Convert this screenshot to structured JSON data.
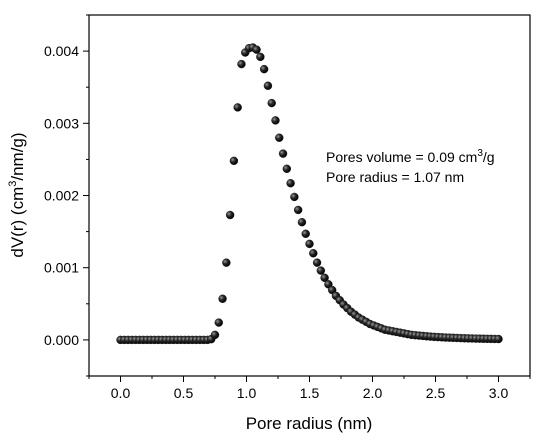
{
  "chart_data": {
    "type": "scatter",
    "xlabel": "Pore radius (nm)",
    "ylabel": {
      "prefix": "dV(r) (cm",
      "sup": "3",
      "suffix": "/nm/g)"
    },
    "xlim": [
      -0.25,
      3.25
    ],
    "ylim": [
      -0.0005,
      0.0045
    ],
    "xticks": [
      0.0,
      0.5,
      1.0,
      1.5,
      2.0,
      2.5,
      3.0
    ],
    "xtick_labels": [
      "0.0",
      "0.5",
      "1.0",
      "1.5",
      "2.0",
      "2.5",
      "3.0"
    ],
    "yticks": [
      0.0,
      0.001,
      0.002,
      0.003,
      0.004
    ],
    "ytick_labels": [
      "0.000",
      "0.001",
      "0.002",
      "0.003",
      "0.004"
    ],
    "grid": false,
    "marker_color": "#1a1a1a",
    "annotations": [
      {
        "prefix": "Pores volume = 0.09 cm",
        "sup": "3",
        "suffix": "/g"
      },
      {
        "prefix": "Pore radius = 1.07 nm",
        "sup": "",
        "suffix": ""
      }
    ],
    "series": [
      {
        "x": [
          0.0,
          0.03,
          0.06,
          0.09,
          0.12,
          0.15,
          0.18,
          0.21,
          0.24,
          0.27,
          0.3,
          0.33,
          0.36,
          0.39,
          0.42,
          0.45,
          0.48,
          0.51,
          0.54,
          0.57,
          0.6,
          0.63,
          0.66,
          0.69,
          0.72,
          0.75,
          0.78,
          0.81,
          0.84,
          0.87,
          0.9,
          0.93,
          0.96,
          0.99,
          1.02,
          1.05,
          1.08,
          1.11,
          1.14,
          1.17,
          1.2,
          1.23,
          1.26,
          1.29,
          1.32,
          1.35,
          1.38,
          1.41,
          1.44,
          1.47,
          1.5,
          1.53,
          1.56,
          1.59,
          1.62,
          1.65,
          1.68,
          1.71,
          1.74,
          1.77,
          1.8,
          1.83,
          1.86,
          1.89,
          1.92,
          1.95,
          1.98,
          2.01,
          2.04,
          2.07,
          2.1,
          2.13,
          2.16,
          2.19,
          2.22,
          2.25,
          2.28,
          2.31,
          2.34,
          2.37,
          2.4,
          2.43,
          2.46,
          2.49,
          2.52,
          2.55,
          2.58,
          2.61,
          2.64,
          2.67,
          2.7,
          2.73,
          2.76,
          2.79,
          2.82,
          2.85,
          2.88,
          2.91,
          2.94,
          2.97,
          3.0
        ],
        "y": [
          0,
          0,
          0,
          0,
          0,
          0,
          0,
          0,
          0,
          0,
          0,
          0,
          0,
          0,
          0,
          0,
          0,
          0,
          0,
          0,
          0,
          0,
          0,
          0,
          1e-05,
          7e-05,
          0.00024,
          0.00057,
          0.00107,
          0.00173,
          0.00248,
          0.00322,
          0.00382,
          0.00398,
          0.00404,
          0.00405,
          0.00402,
          0.00392,
          0.00375,
          0.00352,
          0.00328,
          0.00304,
          0.0028,
          0.00258,
          0.00237,
          0.00217,
          0.00198,
          0.0018,
          0.00163,
          0.00147,
          0.00133,
          0.0012,
          0.00107,
          0.00096,
          0.00086,
          0.00077,
          0.00069,
          0.00061,
          0.00055,
          0.00049,
          0.00044,
          0.00039,
          0.00035,
          0.00031,
          0.00028,
          0.00025,
          0.00022,
          0.0002,
          0.00018,
          0.00016,
          0.00014,
          0.00013,
          0.00012,
          0.00011,
          0.0001,
          9e-05,
          8e-05,
          7e-05,
          6.5e-05,
          6e-05,
          5.5e-05,
          5e-05,
          4.6e-05,
          4.2e-05,
          3.9e-05,
          3.6e-05,
          3.3e-05,
          3.1e-05,
          2.9e-05,
          2.7e-05,
          2.5e-05,
          2.3e-05,
          2.1e-05,
          2e-05,
          1.8e-05,
          1.7e-05,
          1.6e-05,
          1.5e-05,
          1.4e-05,
          1.3e-05,
          1.2e-05
        ]
      }
    ]
  }
}
